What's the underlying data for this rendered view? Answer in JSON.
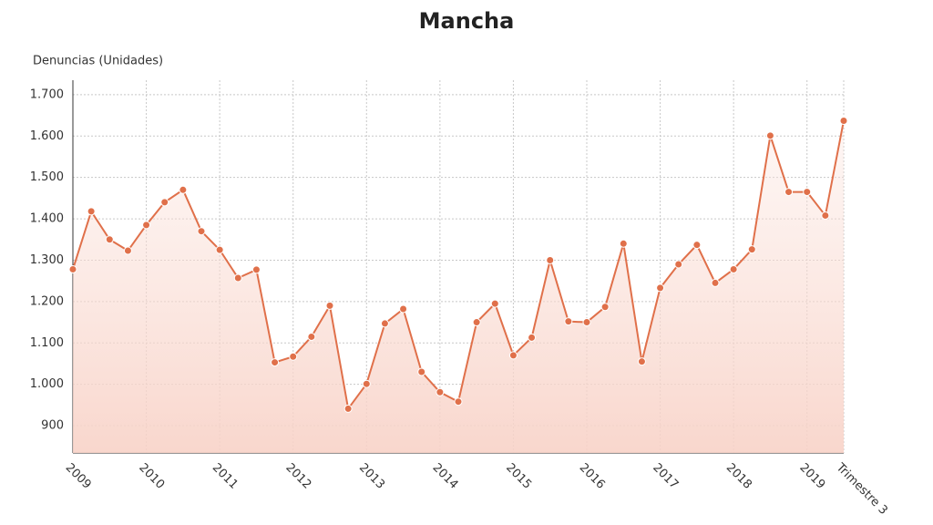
{
  "chart_data": {
    "type": "line",
    "title": "Mancha",
    "y_label": "Denuncias (Unidades)",
    "categories": [
      "2009",
      null,
      null,
      null,
      "2010",
      null,
      null,
      null,
      "2011",
      null,
      null,
      null,
      "2012",
      null,
      null,
      null,
      "2013",
      null,
      null,
      null,
      "2014",
      null,
      null,
      null,
      "2015",
      null,
      null,
      null,
      "2016",
      null,
      null,
      null,
      "2017",
      null,
      null,
      null,
      "2018",
      null,
      null,
      null,
      "2019",
      null,
      "Trimestre 3"
    ],
    "series": [
      {
        "name": "Denuncias",
        "color": "#e0704a",
        "values": [
          1278,
          1418,
          1350,
          1323,
          1385,
          1440,
          1470,
          1370,
          1325,
          1257,
          1277,
          1053,
          1067,
          1115,
          1190,
          941,
          1001,
          1147,
          1182,
          1030,
          981,
          958,
          1150,
          1195,
          1070,
          1113,
          1300,
          1152,
          1150,
          1187,
          1340,
          1055,
          1233,
          1290,
          1337,
          1245,
          1278,
          1326,
          1601,
          1465,
          1465,
          1408,
          1637
        ]
      }
    ],
    "ylim": [
      834,
      1735
    ],
    "yticks": [
      900,
      {
        "value": 1000,
        "label": "1.000"
      },
      {
        "value": 1100,
        "label": "1.100"
      },
      {
        "value": 1200,
        "label": "1.200"
      },
      {
        "value": 1300,
        "label": "1.300"
      },
      {
        "value": 1400,
        "label": "1.400"
      },
      {
        "value": 1500,
        "label": "1.500"
      },
      {
        "value": 1600,
        "label": "1.600"
      },
      {
        "value": 1700,
        "label": "1.700"
      }
    ],
    "grid": true
  }
}
